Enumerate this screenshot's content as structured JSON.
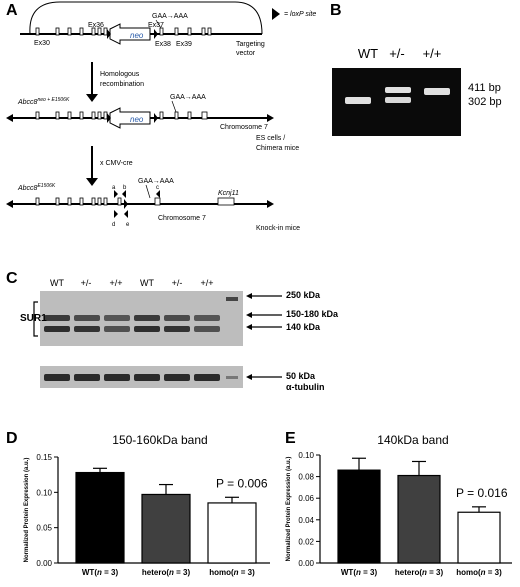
{
  "panel_labels": {
    "a": "A",
    "b": "B",
    "c": "C",
    "d": "D",
    "e": "E"
  },
  "panel_a": {
    "loxp_legend": "= loxP site",
    "mutation": "GAA→AAA",
    "neo": "neo",
    "exons": {
      "ex30": "Ex30",
      "ex36": "Ex36",
      "ex37": "Ex37",
      "ex38": "Ex38",
      "ex39": "Ex39"
    },
    "targeting_vector": "Targeting vector",
    "step1": "Homologous recombination",
    "allele1_base": "Abcc8",
    "allele1_sup": "neo + E1506K",
    "chromosome": "Chromosome 7",
    "stage1": "ES cells / Chimera mice",
    "step2": "x CMV-cre",
    "allele2_base": "Abcc8",
    "allele2_sup": "E1506K",
    "kcnj11": "Kcnj11",
    "stage2": "Knock-in mice",
    "primers": {
      "a": "a",
      "b": "b",
      "c": "c",
      "d": "d",
      "e": "e"
    }
  },
  "panel_b": {
    "lanes": [
      "WT",
      "+/-",
      "+/+"
    ],
    "bands": [
      "411 bp",
      "302 bp"
    ]
  },
  "panel_c": {
    "lanes": [
      "WT",
      "+/-",
      "+/+",
      "WT",
      "+/-",
      "+/+"
    ],
    "sur1": "SUR1",
    "markers": [
      "250 kDa",
      "150-180 kDa",
      "140 kDa"
    ],
    "tubulin_size": "50 kDa",
    "tubulin_name": "α-tubulin"
  },
  "chart_data": [
    {
      "type": "bar",
      "title": "150-160kDa band",
      "ylabel": "Normalized Protein Expression (a.u.)",
      "categories": [
        "WT(n = 3)",
        "hetero(n = 3)",
        "homo(n = 3)"
      ],
      "values": [
        0.128,
        0.097,
        0.085
      ],
      "errors": [
        0.006,
        0.014,
        0.008
      ],
      "colors": [
        "#000000",
        "#404040",
        "#ffffff"
      ],
      "ylim": [
        0,
        0.15
      ],
      "yticks": [
        "0.00",
        "0.05",
        "0.10",
        "0.15"
      ],
      "annotation": "P = 0.006"
    },
    {
      "type": "bar",
      "title": "140kDa band",
      "ylabel": "Normalized Protein Expression (a.u.)",
      "categories": [
        "WT(n = 3)",
        "hetero(n = 3)",
        "homo(n = 3)"
      ],
      "values": [
        0.086,
        0.081,
        0.047
      ],
      "errors": [
        0.011,
        0.013,
        0.005
      ],
      "colors": [
        "#000000",
        "#404040",
        "#ffffff"
      ],
      "ylim": [
        0,
        0.1
      ],
      "yticks": [
        "0.00",
        "0.02",
        "0.04",
        "0.06",
        "0.08",
        "0.10"
      ],
      "annotation": "P = 0.016"
    }
  ]
}
